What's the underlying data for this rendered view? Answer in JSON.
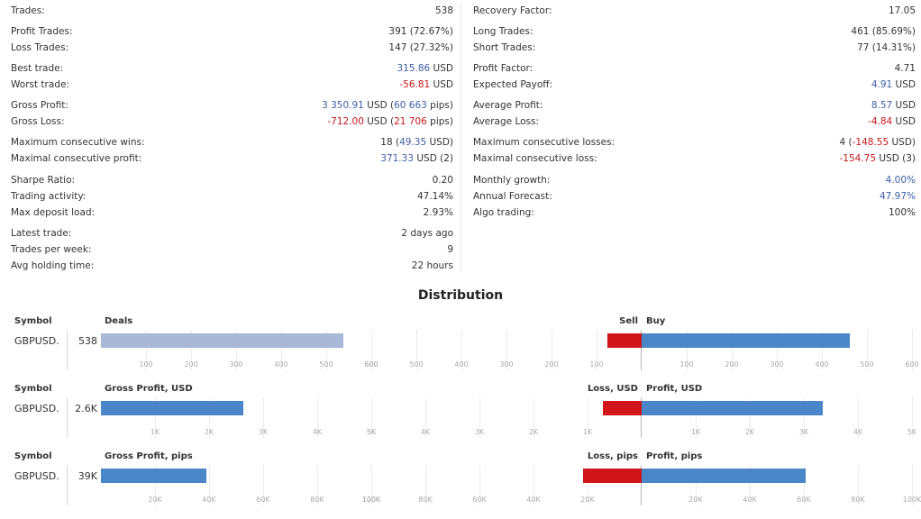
{
  "stats": {
    "left": [
      {
        "label": "Trades:",
        "value": [
          {
            "t": "538"
          }
        ]
      },
      {
        "label": "Profit Trades:",
        "value": [
          {
            "t": "391 (72.67%)"
          }
        ]
      },
      {
        "label": "Loss Trades:",
        "value": [
          {
            "t": "147 (27.32%)"
          }
        ]
      },
      {
        "label": "Best trade:",
        "value": [
          {
            "t": "315.86",
            "c": "blue"
          },
          {
            "t": " USD"
          }
        ]
      },
      {
        "label": "Worst trade:",
        "value": [
          {
            "t": "-56.81",
            "c": "red"
          },
          {
            "t": " USD"
          }
        ]
      },
      {
        "label": "Gross Profit:",
        "value": [
          {
            "t": "3 350.91",
            "c": "blue"
          },
          {
            "t": " USD ("
          },
          {
            "t": "60 663",
            "c": "blue"
          },
          {
            "t": " pips)"
          }
        ]
      },
      {
        "label": "Gross Loss:",
        "value": [
          {
            "t": "-712.00",
            "c": "red"
          },
          {
            "t": " USD ("
          },
          {
            "t": "21 706",
            "c": "red"
          },
          {
            "t": " pips)"
          }
        ]
      },
      {
        "label": "Maximum consecutive wins:",
        "value": [
          {
            "t": "18 ("
          },
          {
            "t": "49.35",
            "c": "blue"
          },
          {
            "t": " USD)"
          }
        ]
      },
      {
        "label": "Maximal consecutive profit:",
        "value": [
          {
            "t": "371.33",
            "c": "blue"
          },
          {
            "t": " USD (2)"
          }
        ]
      },
      {
        "label": "Sharpe Ratio:",
        "value": [
          {
            "t": "0.20"
          }
        ]
      },
      {
        "label": "Trading activity:",
        "value": [
          {
            "t": "47.14%"
          }
        ]
      },
      {
        "label": "Max deposit load:",
        "value": [
          {
            "t": "2.93%"
          }
        ]
      },
      {
        "label": "Latest trade:",
        "value": [
          {
            "t": "2 days ago"
          }
        ]
      },
      {
        "label": "Trades per week:",
        "value": [
          {
            "t": "9"
          }
        ]
      },
      {
        "label": "Avg holding time:",
        "value": [
          {
            "t": "22 hours"
          }
        ]
      }
    ],
    "right": [
      {
        "label": "Recovery Factor:",
        "value": [
          {
            "t": "17.05"
          }
        ]
      },
      {
        "label": "Long Trades:",
        "value": [
          {
            "t": "461 (85.69%)"
          }
        ]
      },
      {
        "label": "Short Trades:",
        "value": [
          {
            "t": "77 (14.31%)"
          }
        ]
      },
      {
        "label": "Profit Factor:",
        "value": [
          {
            "t": "4.71"
          }
        ]
      },
      {
        "label": "Expected Payoff:",
        "value": [
          {
            "t": "4.91",
            "c": "blue"
          },
          {
            "t": " USD"
          }
        ]
      },
      {
        "label": "Average Profit:",
        "value": [
          {
            "t": "8.57",
            "c": "blue"
          },
          {
            "t": " USD"
          }
        ]
      },
      {
        "label": "Average Loss:",
        "value": [
          {
            "t": "-4.84",
            "c": "red"
          },
          {
            "t": " USD"
          }
        ]
      },
      {
        "label": "Maximum consecutive losses:",
        "value": [
          {
            "t": "4 ("
          },
          {
            "t": "-148.55",
            "c": "red"
          },
          {
            "t": " USD)"
          }
        ]
      },
      {
        "label": "Maximal consecutive loss:",
        "value": [
          {
            "t": "-154.75",
            "c": "red"
          },
          {
            "t": " USD (3)"
          }
        ]
      },
      {
        "label": "Monthly growth:",
        "value": [
          {
            "t": "4.00%",
            "c": "blue"
          }
        ]
      },
      {
        "label": "Annual Forecast:",
        "value": [
          {
            "t": "47.97%",
            "c": "blue"
          }
        ]
      },
      {
        "label": "Algo trading:",
        "value": [
          {
            "t": "100%"
          }
        ]
      }
    ]
  },
  "distribution": {
    "title": "Distribution",
    "sections": [
      {
        "symbol_header": "Symbol",
        "symbol": "GBPUSD.",
        "total": "538",
        "left_header": "Deals",
        "neg_header": "Sell",
        "pos_header": "Buy",
        "left_value": 538,
        "left_max": 600,
        "left_color": "#a8b8d6",
        "left_ticks": [
          "100",
          "200",
          "300",
          "400",
          "500",
          "600"
        ],
        "neg_value": 77,
        "pos_value": 461,
        "right_max": 600,
        "neg_ticks": [
          "600",
          "500",
          "400",
          "300",
          "200",
          "100"
        ],
        "pos_ticks": [
          "100",
          "200",
          "300",
          "400",
          "500",
          "600"
        ]
      },
      {
        "symbol_header": "Symbol",
        "symbol": "GBPUSD.",
        "total": "2.6K",
        "left_header": "Gross Profit, USD",
        "neg_header": "Loss, USD",
        "pos_header": "Profit, USD",
        "left_value": 2639,
        "left_max": 5000,
        "left_color": "#4a86c8",
        "left_ticks": [
          "1K",
          "2K",
          "3K",
          "4K",
          "5K"
        ],
        "neg_value": 712,
        "pos_value": 3351,
        "right_max": 5000,
        "neg_ticks": [
          "5K",
          "4K",
          "3K",
          "2K",
          "1K"
        ],
        "pos_ticks": [
          "1K",
          "2K",
          "3K",
          "4K",
          "5K"
        ]
      },
      {
        "symbol_header": "Symbol",
        "symbol": "GBPUSD.",
        "total": "39K",
        "left_header": "Gross Profit, pips",
        "neg_header": "Loss, pips",
        "pos_header": "Profit, pips",
        "left_value": 38957,
        "left_max": 100000,
        "left_color": "#4a86c8",
        "left_ticks": [
          "20K",
          "40K",
          "60K",
          "80K",
          "100K"
        ],
        "neg_value": 21706,
        "pos_value": 60663,
        "right_max": 100000,
        "neg_ticks": [
          "100K",
          "80K",
          "60K",
          "40K",
          "20K"
        ],
        "pos_ticks": [
          "20K",
          "40K",
          "60K",
          "80K",
          "100K"
        ]
      }
    ]
  },
  "colors": {
    "blue": "#3e5ea8",
    "red": "#c8161b",
    "bar_blue": "#4a86c8",
    "bar_red": "#d0161b",
    "bar_light": "#a8b8d6"
  }
}
